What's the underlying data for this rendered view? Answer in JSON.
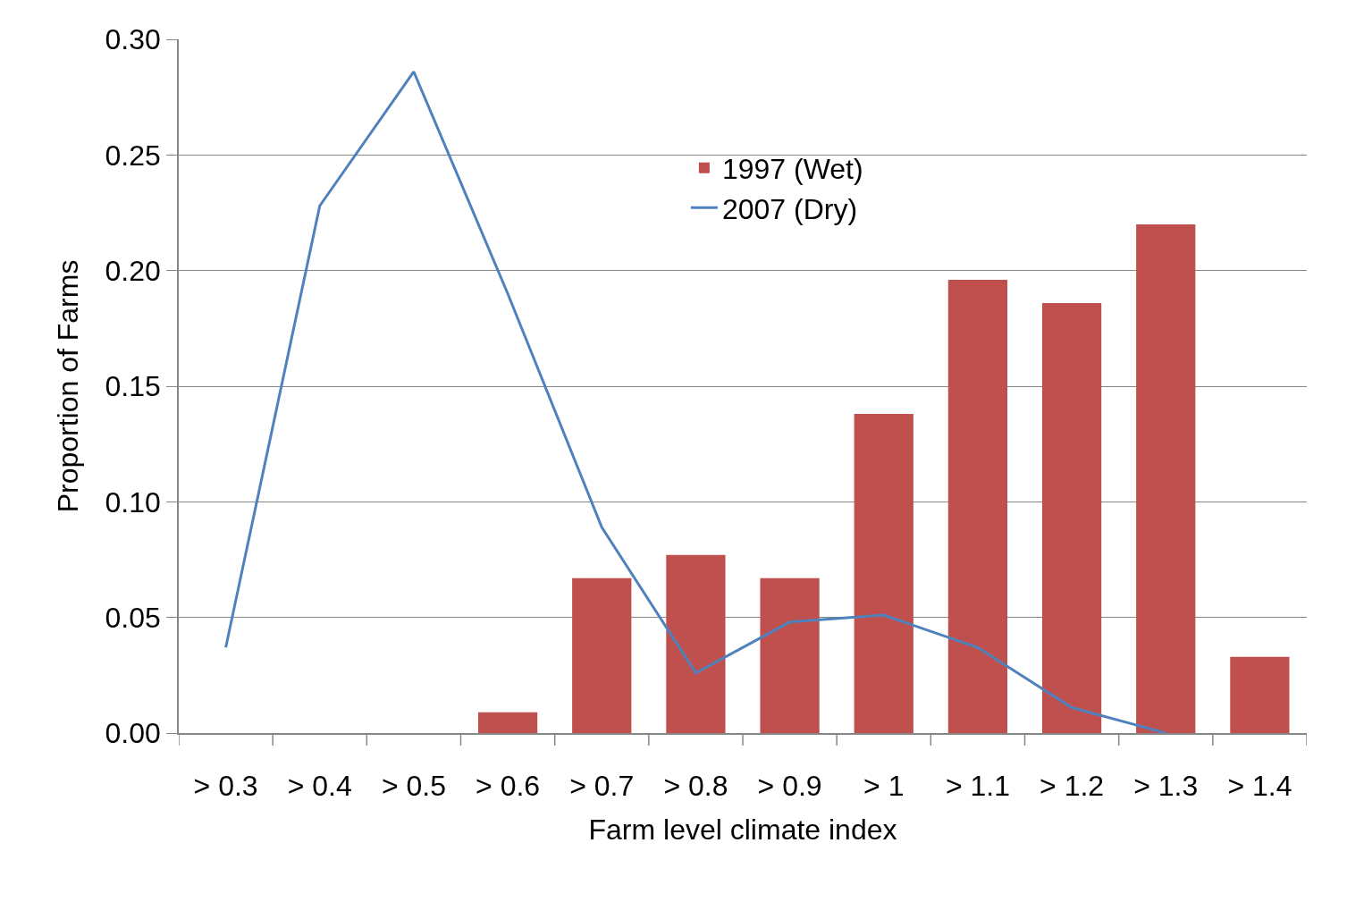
{
  "chart_data": {
    "type": "bar",
    "xlabel": "Farm level climate index",
    "ylabel": "Proportion of Farms",
    "categories": [
      "> 0.3",
      "> 0.4",
      "> 0.5",
      "> 0.6",
      "> 0.7",
      "> 0.8",
      "> 0.9",
      "> 1",
      "> 1.1",
      "> 1.2",
      "> 1.3",
      "> 1.4"
    ],
    "series": [
      {
        "name": "1997 (Wet)",
        "color": "#c0504d",
        "values": [
          0,
          0,
          0,
          0.009,
          0.067,
          0.077,
          0.067,
          0.138,
          0.196,
          0.186,
          0.22,
          0.033
        ]
      },
      {
        "name": "2007 (Dry)",
        "type": "line",
        "color": "#4f81bd",
        "values": [
          0.037,
          0.228,
          0.286,
          0.19,
          0.089,
          0.026,
          0.048,
          0.051,
          0.037,
          0.011,
          0.0,
          null
        ]
      }
    ],
    "ylim": [
      0,
      0.3
    ],
    "yticks": [
      {
        "value": 0,
        "label": "0.00"
      },
      {
        "value": 0.05,
        "label": "0.05"
      },
      {
        "value": 0.1,
        "label": "0.10"
      },
      {
        "value": 0.15,
        "label": "0.15"
      },
      {
        "value": 0.2,
        "label": "0.20"
      },
      {
        "value": 0.25,
        "label": "0.25"
      },
      {
        "value": 0.3,
        "label": "0.30"
      }
    ],
    "grid": "y",
    "legend": "top",
    "marker": "none",
    "line_style": "solid"
  }
}
